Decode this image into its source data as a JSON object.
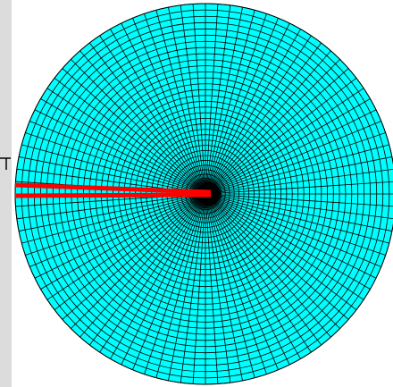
{
  "scene": {
    "background": "#ffffff",
    "side_panel_color": "#dcdcdc",
    "disk_fill": "#00ffff",
    "mesh_line_color": "#000000",
    "crack_color": "#ff0000",
    "left_tick_color": "#000000"
  },
  "mesh": {
    "circumferential_rings": 32,
    "radial_spokes": 96
  },
  "crack": {
    "description_visible": false,
    "lines": 2
  }
}
